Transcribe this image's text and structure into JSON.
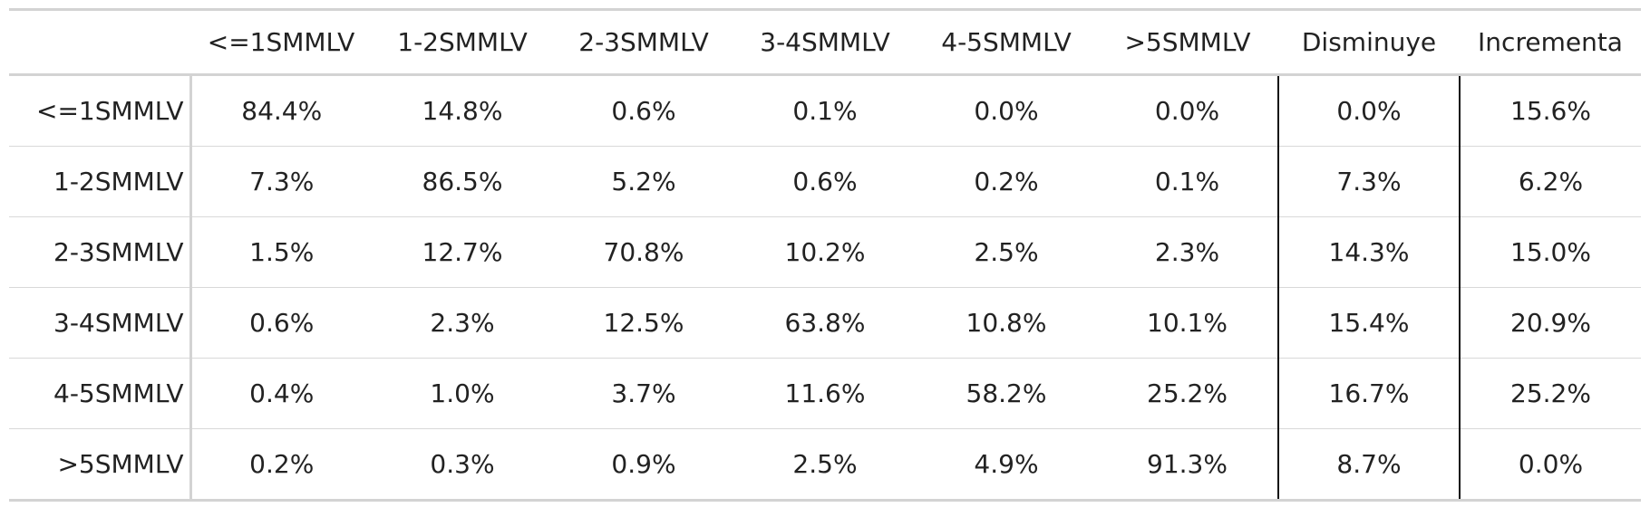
{
  "chart_data": {
    "type": "table",
    "column_headers": [
      "",
      "<=1SMMLV",
      "1-2SMMLV",
      "2-3SMMLV",
      "3-4SMMLV",
      "4-5SMMLV",
      ">5SMMLV",
      "Disminuye",
      "Incrementa"
    ],
    "rows": [
      {
        "label": "<=1SMMLV",
        "cells": [
          "84.4%",
          "14.8%",
          "0.6%",
          "0.1%",
          "0.0%",
          "0.0%",
          "0.0%",
          "15.6%"
        ]
      },
      {
        "label": "1-2SMMLV",
        "cells": [
          "7.3%",
          "86.5%",
          "5.2%",
          "0.6%",
          "0.2%",
          "0.1%",
          "7.3%",
          "6.2%"
        ]
      },
      {
        "label": "2-3SMMLV",
        "cells": [
          "1.5%",
          "12.7%",
          "70.8%",
          "10.2%",
          "2.5%",
          "2.3%",
          "14.3%",
          "15.0%"
        ]
      },
      {
        "label": "3-4SMMLV",
        "cells": [
          "0.6%",
          "2.3%",
          "12.5%",
          "63.8%",
          "10.8%",
          "10.1%",
          "15.4%",
          "20.9%"
        ]
      },
      {
        "label": "4-5SMMLV",
        "cells": [
          "0.4%",
          "1.0%",
          "3.7%",
          "11.6%",
          "58.2%",
          "25.2%",
          "16.7%",
          "25.2%"
        ]
      },
      {
        "label": ">5SMMLV",
        "cells": [
          "0.2%",
          "0.3%",
          "0.9%",
          "2.5%",
          "4.9%",
          "91.3%",
          "8.7%",
          "0.0%"
        ]
      }
    ]
  }
}
